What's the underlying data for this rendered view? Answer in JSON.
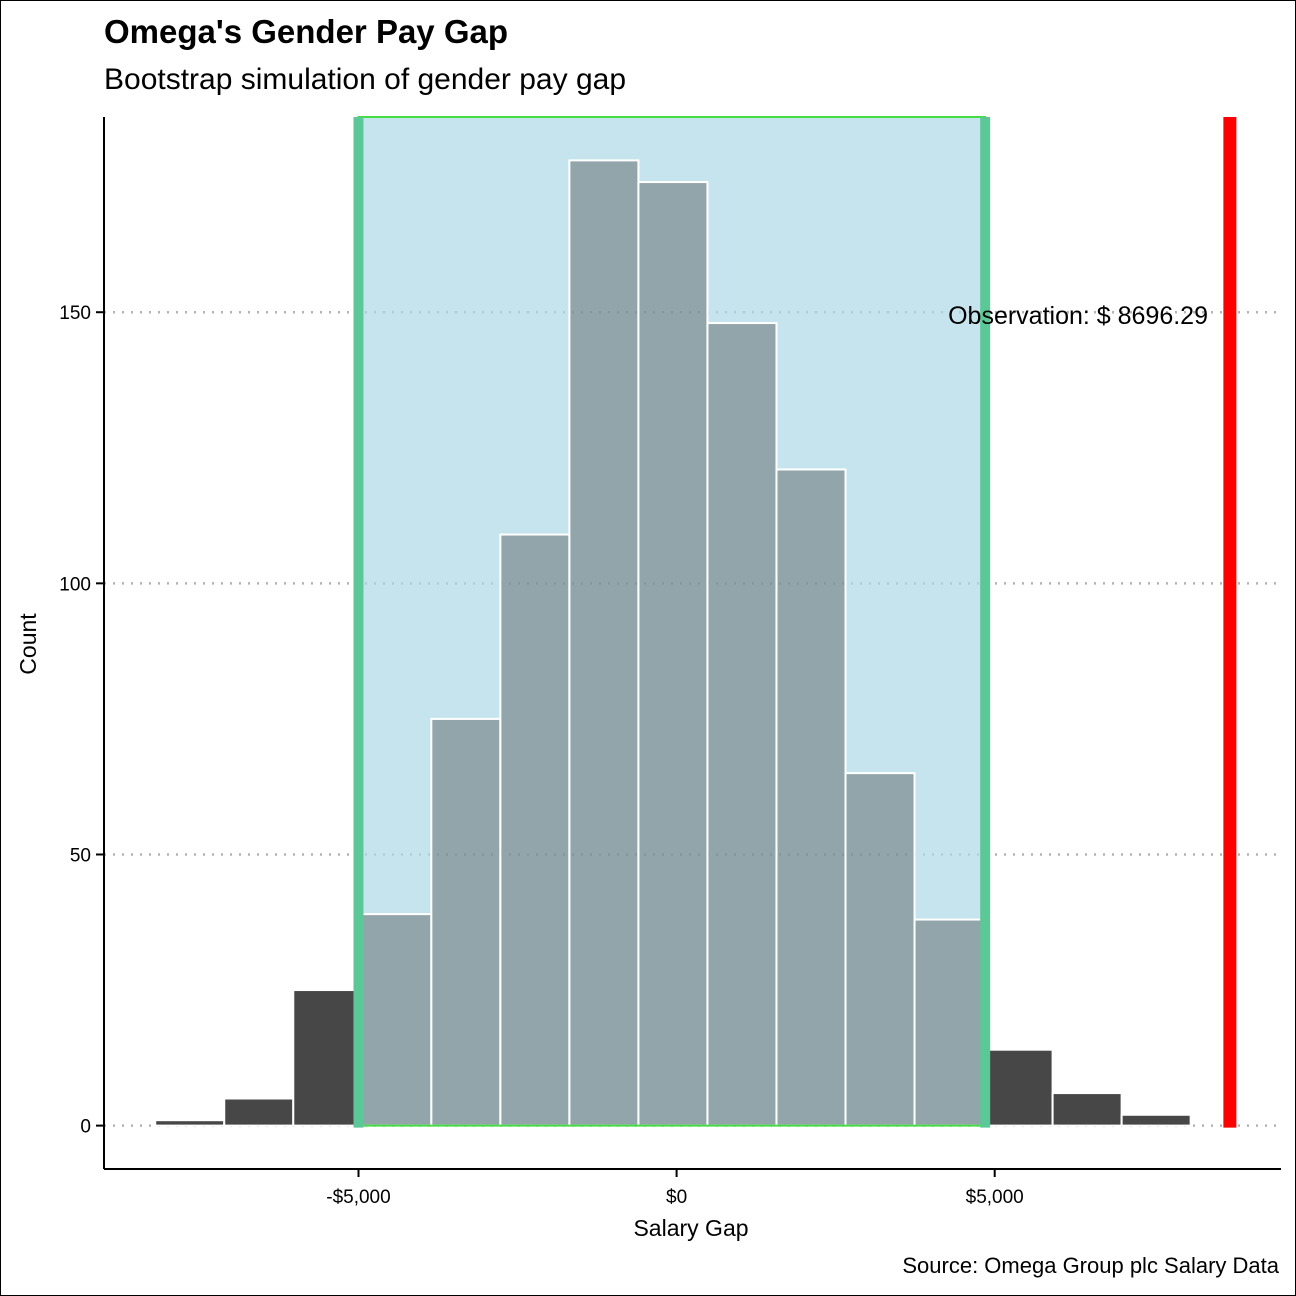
{
  "chart_data": {
    "type": "bar",
    "title": "Omega's Gender Pay Gap",
    "subtitle": "Bootstrap simulation of gender pay gap",
    "caption": "Source: Omega Group plc Salary Data",
    "xlabel": "Salary Gap",
    "ylabel": "Count",
    "xlim": [
      -9000,
      9500
    ],
    "ylim": [
      -8,
      186
    ],
    "x_ticks": [
      -5000,
      0,
      5000
    ],
    "x_tick_labels": [
      "-$5,000",
      "$0",
      "$5,000"
    ],
    "y_ticks": [
      0,
      50,
      100,
      150
    ],
    "y_tick_labels": [
      "0",
      "50",
      "100",
      "150"
    ],
    "grid": "horizontal dotted",
    "bins": [
      {
        "x0": -8195,
        "x1": -7110,
        "count": 1
      },
      {
        "x0": -7110,
        "x1": -6025,
        "count": 5
      },
      {
        "x0": -6025,
        "x1": -4940,
        "count": 25
      },
      {
        "x0": -4940,
        "x1": -3855,
        "count": 39
      },
      {
        "x0": -3855,
        "x1": -2770,
        "count": 75
      },
      {
        "x0": -2770,
        "x1": -1685,
        "count": 109
      },
      {
        "x0": -1685,
        "x1": -600,
        "count": 178
      },
      {
        "x0": -600,
        "x1": 485,
        "count": 174
      },
      {
        "x0": 485,
        "x1": 1570,
        "count": 148
      },
      {
        "x0": 1570,
        "x1": 2655,
        "count": 121
      },
      {
        "x0": 2655,
        "x1": 3740,
        "count": 65
      },
      {
        "x0": 3740,
        "x1": 4825,
        "count": 38
      },
      {
        "x0": 4825,
        "x1": 5910,
        "count": 14
      },
      {
        "x0": 5910,
        "x1": 6995,
        "count": 6
      },
      {
        "x0": 6995,
        "x1": 8080,
        "count": 2
      }
    ],
    "confidence_interval": [
      -5000,
      4850
    ],
    "observation": 8696.29,
    "observation_label": "Observation: $ 8696.29",
    "colors": {
      "bar": "#474747",
      "ci_fill": "#add8e6",
      "ci_border": "#5cc897",
      "ci_outline": "#44dd44",
      "observation_line": "#ff0000",
      "grid": "#b3b3b3"
    }
  }
}
